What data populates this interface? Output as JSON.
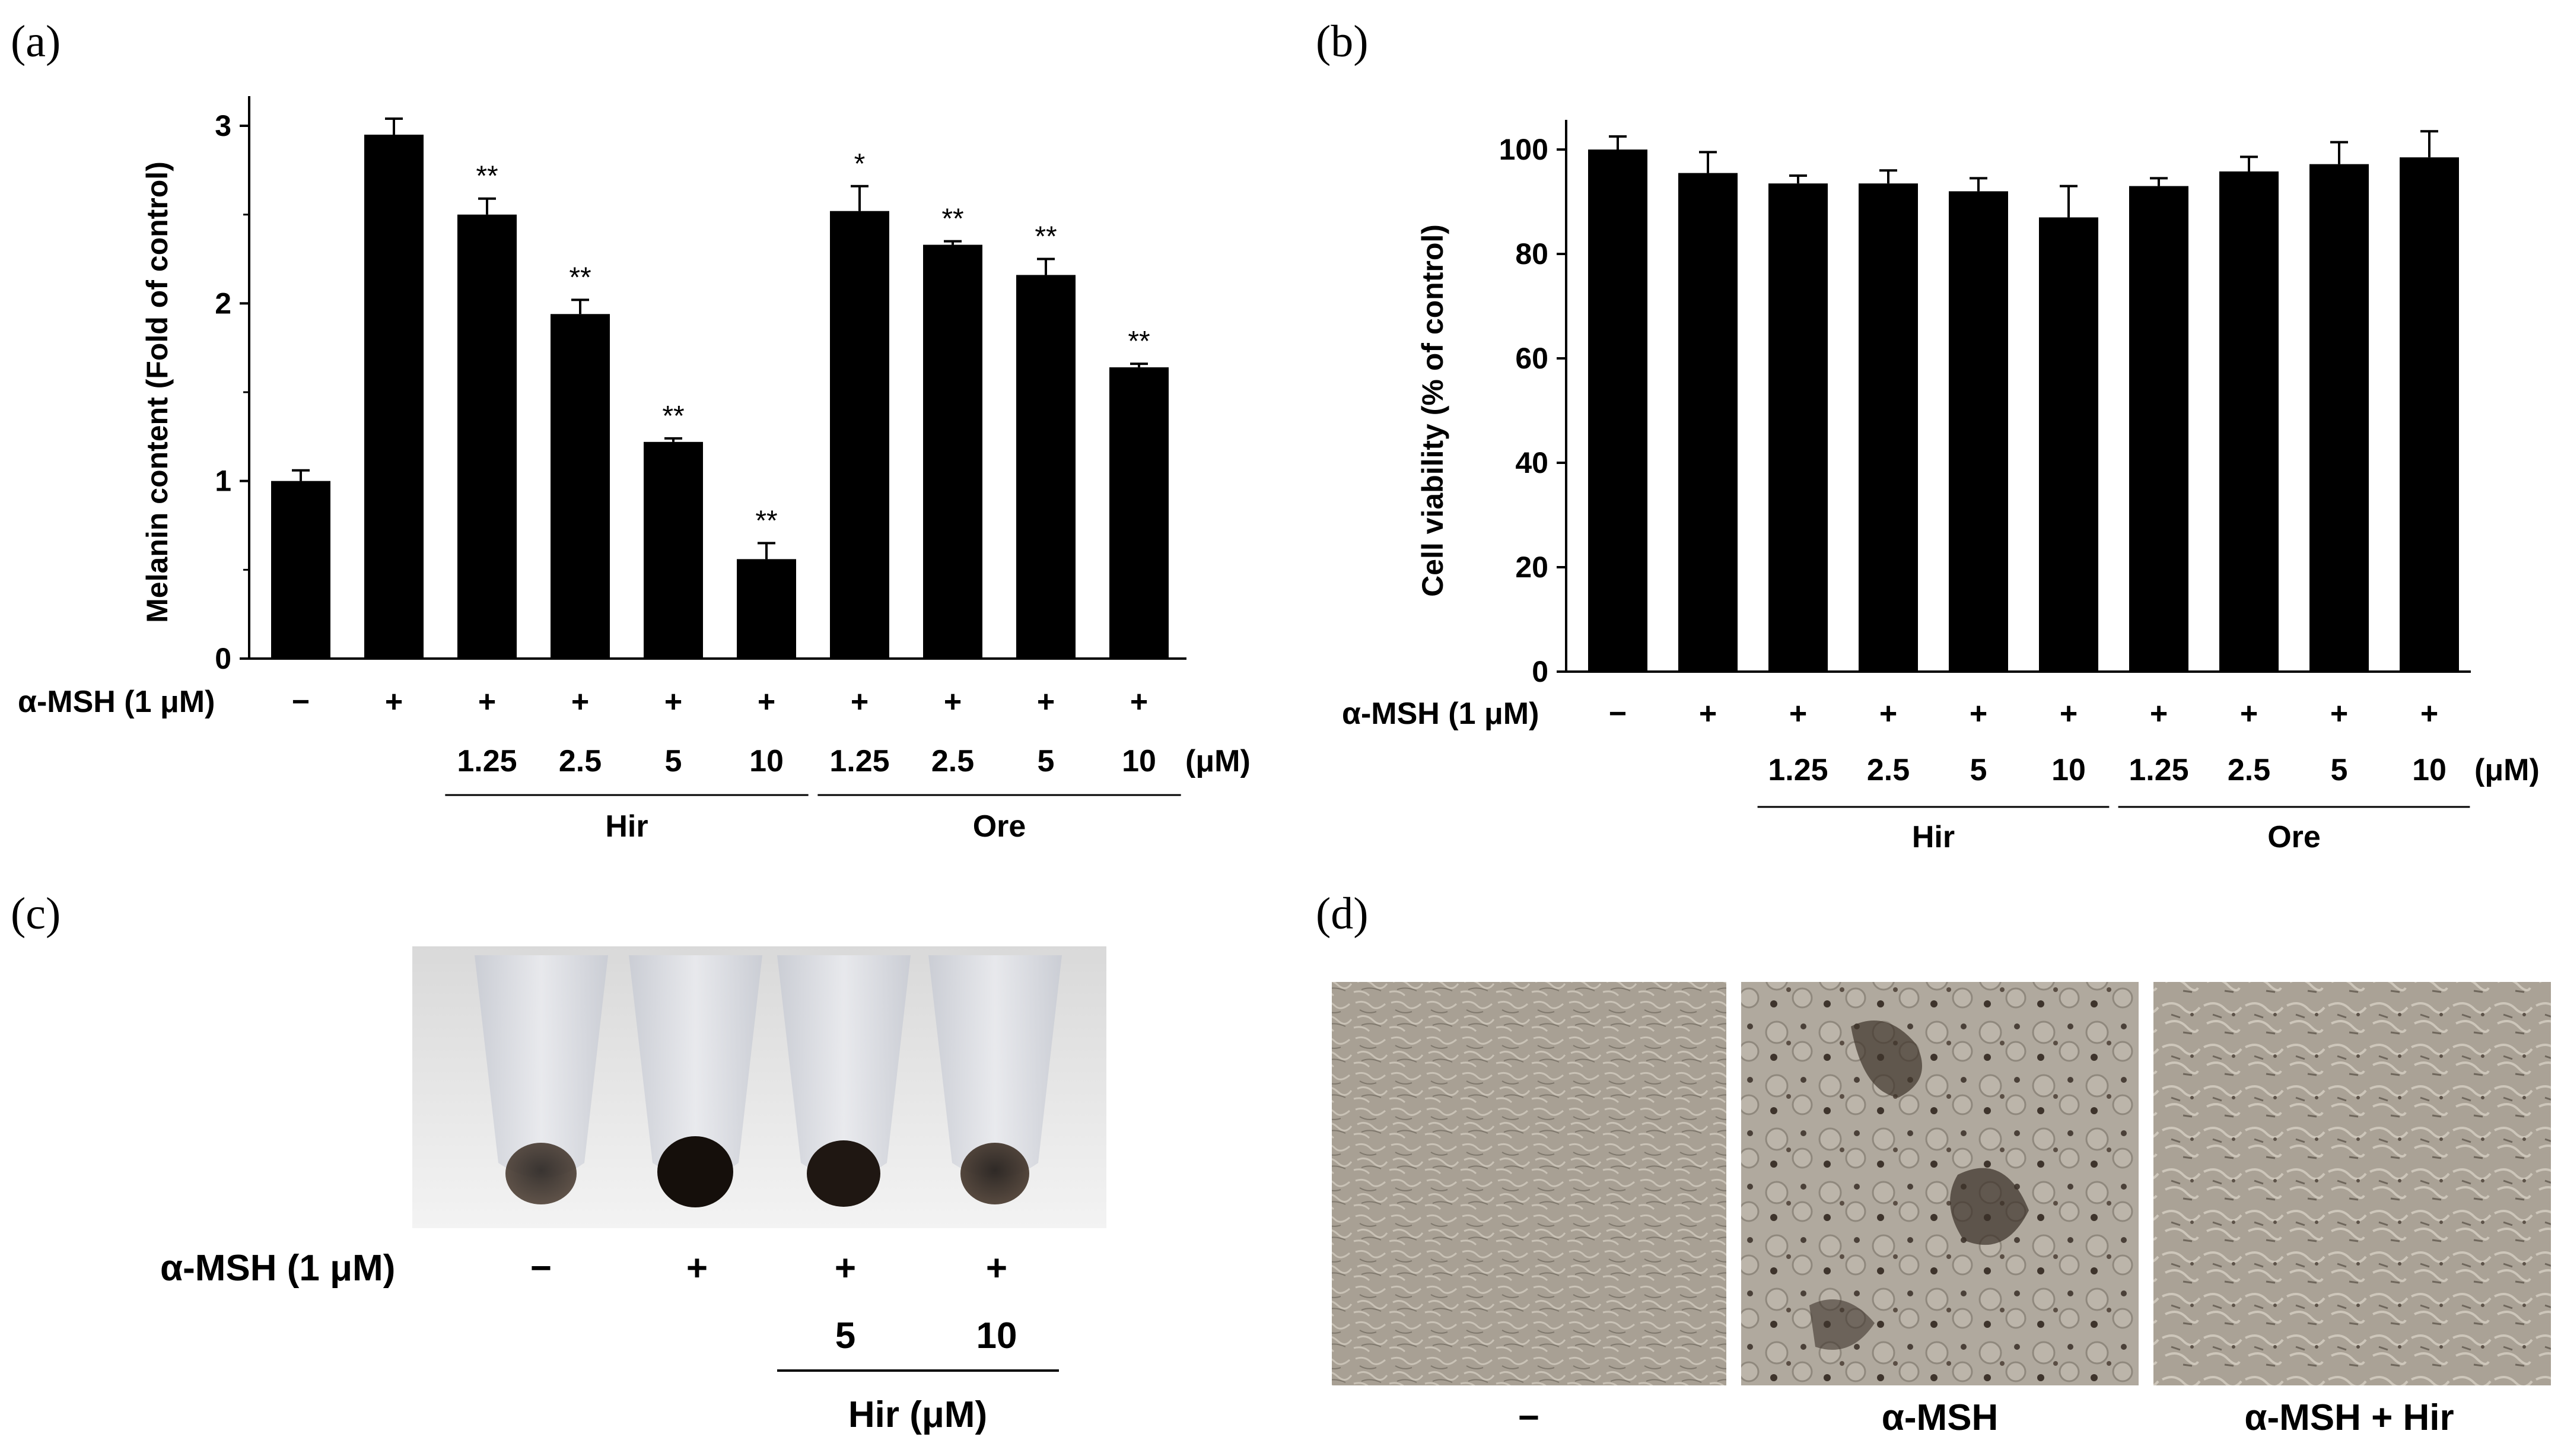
{
  "panel_labels": {
    "a": "(a)",
    "b": "(b)",
    "c": "(c)",
    "d": "(d)"
  },
  "msh_label": "α-MSH (1 μM)",
  "unit_label": "(μM)",
  "group_names": {
    "hir": "Hir",
    "ore": "Ore"
  },
  "chart_data": [
    {
      "type": "bar",
      "panel": "(a)",
      "ylabel": "Melanin content (Fold of control)",
      "ylim": [
        0,
        3
      ],
      "yticks": [
        "0",
        "1",
        "2",
        "3"
      ],
      "msh": [
        "−",
        "+",
        "+",
        "+",
        "+",
        "+",
        "+",
        "+",
        "+",
        "+"
      ],
      "concentrations": [
        "",
        "",
        "1.25",
        "2.5",
        "5",
        "10",
        "1.25",
        "2.5",
        "5",
        "10"
      ],
      "values": [
        1.0,
        2.95,
        2.5,
        1.94,
        1.22,
        0.56,
        2.52,
        2.33,
        2.16,
        1.64
      ],
      "errors": [
        0.06,
        0.09,
        0.09,
        0.08,
        0.02,
        0.09,
        0.14,
        0.02,
        0.09,
        0.02
      ],
      "significance": [
        "",
        "",
        "**",
        "**",
        "**",
        "**",
        "*",
        "**",
        "**",
        "**"
      ]
    },
    {
      "type": "bar",
      "panel": "(b)",
      "ylabel": "Cell viability (% of control)",
      "ylim": [
        0,
        100
      ],
      "yticks": [
        "0",
        "20",
        "40",
        "60",
        "80",
        "100"
      ],
      "msh": [
        "−",
        "+",
        "+",
        "+",
        "+",
        "+",
        "+",
        "+",
        "+",
        "+"
      ],
      "concentrations": [
        "",
        "",
        "1.25",
        "2.5",
        "5",
        "10",
        "1.25",
        "2.5",
        "5",
        "10"
      ],
      "values": [
        100,
        95.5,
        93.5,
        93.5,
        92,
        87,
        93,
        95.8,
        97.2,
        98.5
      ],
      "errors": [
        2.5,
        4.0,
        1.5,
        2.5,
        2.5,
        6.0,
        1.5,
        2.8,
        4.2,
        5.0
      ],
      "significance": [
        "",
        "",
        "",
        "",
        "",
        "",
        "",
        "",
        "",
        ""
      ]
    }
  ],
  "panel_c": {
    "msh_label": "α-MSH (1 μM)",
    "msh": [
      "−",
      "+",
      "+",
      "+"
    ],
    "concentrations": [
      "",
      "",
      "5",
      "10"
    ],
    "group_label": "Hir (μM)"
  },
  "panel_d": {
    "captions": [
      "−",
      "α-MSH",
      "α-MSH + Hir"
    ]
  }
}
